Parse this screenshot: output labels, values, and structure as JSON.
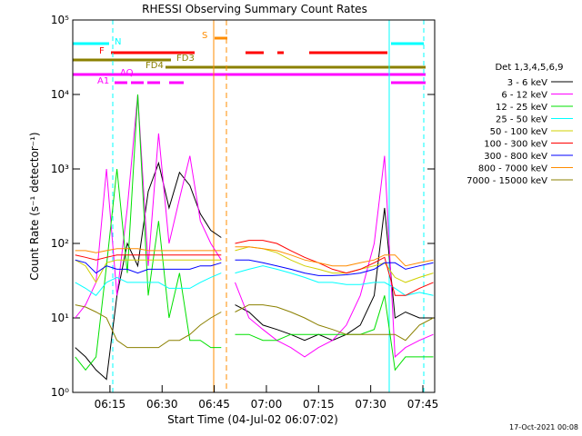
{
  "chart_data": {
    "type": "line",
    "title": "RHESSI Observing Summary Count Rates",
    "x_label": "Start Time (04-Jul-02 06:07:02)",
    "y_label": "Count Rate (s⁻¹ detector⁻¹)",
    "legend_title": "Det 1,3,4,5,6,9",
    "footer": "17-Oct-2021 00:08",
    "annotations": [
      "N",
      "F",
      "FD3",
      "FD4",
      "AQ",
      "A1",
      "S"
    ],
    "log_y": true,
    "xlim": [
      364.3,
      468.4
    ],
    "xticks": [
      {
        "value": 375,
        "label": "06:15"
      },
      {
        "value": 390,
        "label": "06:30"
      },
      {
        "value": 405,
        "label": "06:45"
      },
      {
        "value": 420,
        "label": "07:00"
      },
      {
        "value": 435,
        "label": "07:15"
      },
      {
        "value": 450,
        "label": "07:30"
      },
      {
        "value": 465,
        "label": "07:45"
      }
    ],
    "ylim": [
      1,
      100000
    ],
    "yticks": [
      {
        "value": 1,
        "label": "10⁰"
      },
      {
        "value": 10,
        "label": "10¹"
      },
      {
        "value": 100,
        "label": "10²"
      },
      {
        "value": 1000,
        "label": "10³"
      },
      {
        "value": 10000,
        "label": "10⁴"
      },
      {
        "value": 100000,
        "label": "10⁵"
      }
    ],
    "x": [
      365,
      368,
      371,
      374,
      377,
      380,
      383,
      386,
      389,
      392,
      395,
      398,
      401,
      404,
      407,
      409,
      411,
      415,
      419,
      423,
      427,
      431,
      435,
      439,
      443,
      447,
      451,
      454,
      457,
      460,
      464,
      468
    ],
    "series": [
      {
        "name": "3 - 6 keV",
        "color": "#000000",
        "values": [
          4,
          3,
          2,
          1.5,
          20,
          100,
          50,
          500,
          1200,
          300,
          900,
          600,
          250,
          150,
          120,
          null,
          15,
          12,
          8,
          7,
          6,
          5,
          6,
          5,
          6,
          8,
          20,
          300,
          10,
          12,
          10,
          10
        ]
      },
      {
        "name": "6 - 12 keV",
        "color": "#ff00ff",
        "values": [
          10,
          15,
          30,
          1000,
          20,
          300,
          10000,
          50,
          3000,
          100,
          400,
          1500,
          200,
          100,
          60,
          null,
          30,
          10,
          7,
          5,
          4,
          3,
          4,
          5,
          8,
          20,
          100,
          1500,
          3,
          4,
          5,
          6
        ]
      },
      {
        "name": "12 - 25 keV",
        "color": "#00e000",
        "values": [
          3,
          2,
          3,
          50,
          1000,
          40,
          10000,
          20,
          200,
          10,
          40,
          5,
          5,
          4,
          4,
          null,
          6,
          6,
          5,
          5,
          6,
          6,
          6,
          6,
          6,
          6,
          7,
          20,
          2,
          3,
          3,
          3
        ]
      },
      {
        "name": "25 - 50 keV",
        "color": "#00ffff",
        "values": [
          30,
          25,
          20,
          30,
          35,
          30,
          30,
          30,
          30,
          25,
          25,
          25,
          30,
          35,
          40,
          null,
          40,
          45,
          50,
          45,
          40,
          35,
          30,
          30,
          28,
          28,
          30,
          30,
          25,
          20,
          22,
          20
        ]
      },
      {
        "name": "50 - 100 keV",
        "color": "#d0d000",
        "values": [
          60,
          50,
          30,
          55,
          60,
          60,
          60,
          60,
          60,
          60,
          60,
          60,
          60,
          60,
          60,
          null,
          80,
          90,
          85,
          75,
          60,
          50,
          45,
          40,
          40,
          45,
          50,
          55,
          35,
          30,
          35,
          40
        ]
      },
      {
        "name": "100 - 300 keV",
        "color": "#ff0000",
        "values": [
          70,
          65,
          60,
          65,
          70,
          70,
          70,
          70,
          70,
          70,
          70,
          70,
          70,
          70,
          70,
          null,
          100,
          110,
          110,
          100,
          80,
          65,
          55,
          45,
          40,
          45,
          55,
          65,
          20,
          20,
          25,
          30
        ]
      },
      {
        "name": "300 - 800 keV",
        "color": "#0000ff",
        "values": [
          60,
          55,
          40,
          50,
          45,
          45,
          40,
          45,
          45,
          45,
          45,
          45,
          50,
          50,
          55,
          null,
          60,
          60,
          55,
          50,
          45,
          40,
          37,
          37,
          38,
          40,
          45,
          55,
          55,
          45,
          50,
          55
        ]
      },
      {
        "name": "800 - 7000 keV",
        "color": "#ff8c00",
        "values": [
          80,
          80,
          75,
          80,
          85,
          85,
          85,
          80,
          80,
          80,
          80,
          80,
          80,
          80,
          80,
          null,
          90,
          90,
          85,
          80,
          70,
          60,
          55,
          50,
          50,
          55,
          60,
          70,
          70,
          50,
          55,
          60
        ]
      },
      {
        "name": "7000 - 15000 keV",
        "color": "#8b8000",
        "values": [
          15,
          14,
          12,
          10,
          5,
          4,
          4,
          4,
          4,
          5,
          5,
          6,
          8,
          10,
          12,
          null,
          12,
          15,
          15,
          14,
          12,
          10,
          8,
          7,
          6,
          6,
          6,
          6,
          6,
          5,
          8,
          10
        ]
      }
    ]
  }
}
